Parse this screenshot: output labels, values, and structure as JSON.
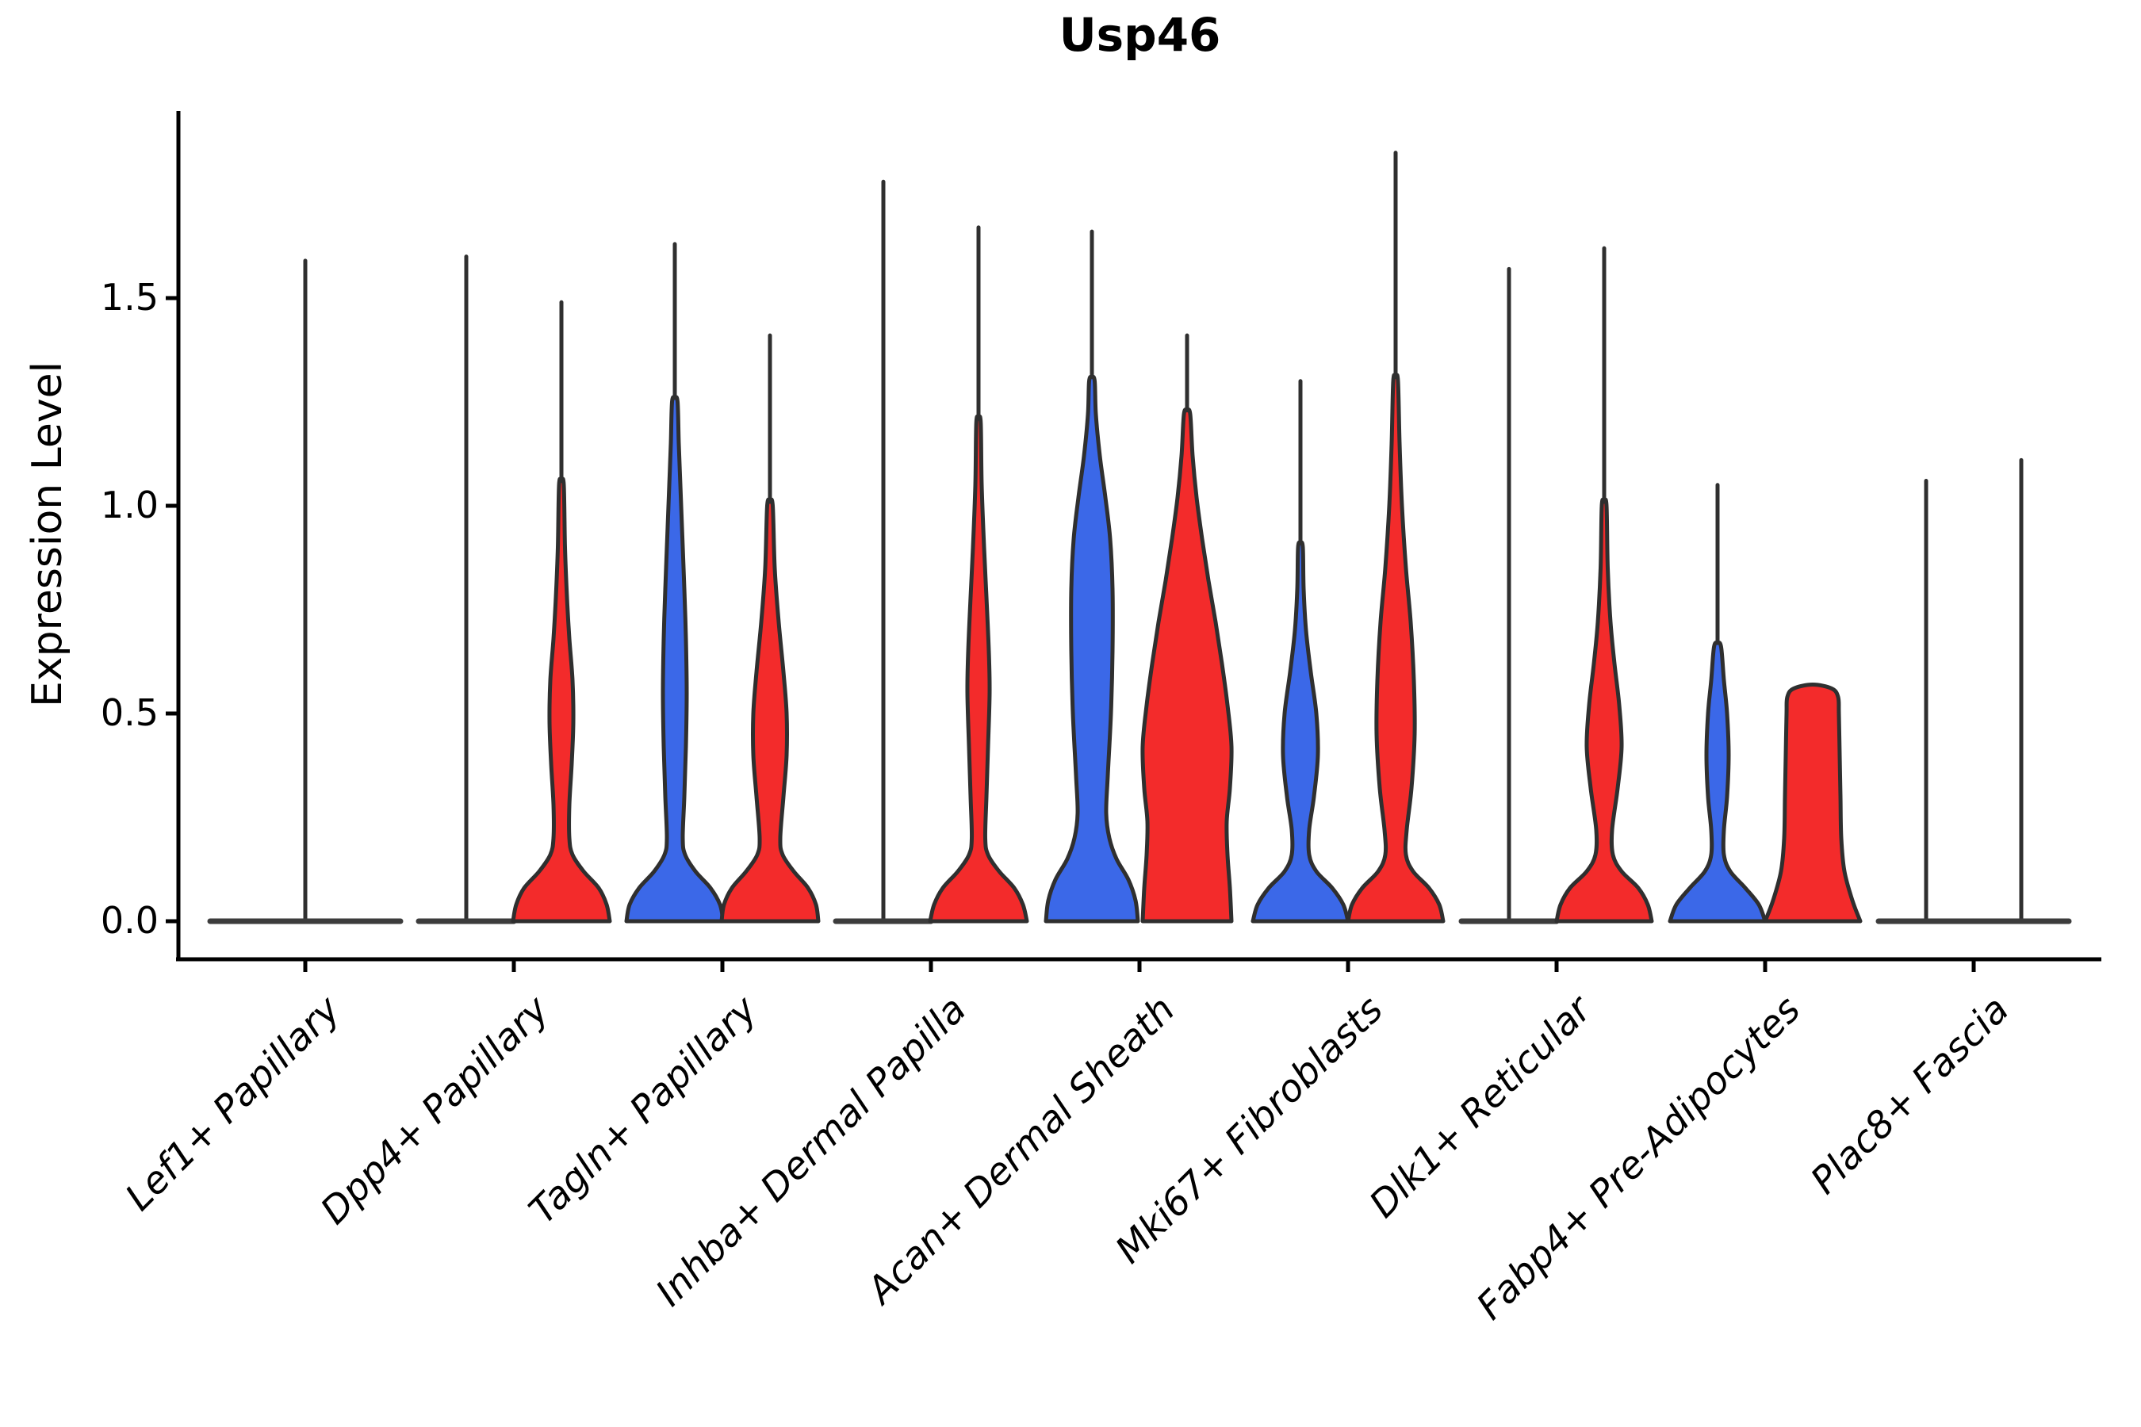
{
  "chart_data": {
    "type": "violin",
    "title": "Usp46",
    "ylabel": "Expression Level",
    "xlabel": "",
    "grid": false,
    "legend_position": "none",
    "ylim": [
      0,
      1.95
    ],
    "yticks": [
      {
        "label": "0.0",
        "value": 0.0
      },
      {
        "label": "0.5",
        "value": 0.5
      },
      {
        "label": "1.0",
        "value": 1.0
      },
      {
        "label": "1.5",
        "value": 1.5
      }
    ],
    "categories": [
      "Lef1+ Papillary",
      "Dpp4+ Papillary",
      "Tagln+ Papillary",
      "Inhba+ Dermal Papilla",
      "Acan+ Dermal Sheath",
      "Mki67+ Fibroblasts",
      "Dlk1+ Reticular",
      "Fabp4+ Pre-Adipocytes",
      "Plac8+ Fascia"
    ],
    "series": [
      {
        "key": "blue",
        "color": "#3B68E8"
      },
      {
        "key": "red",
        "color": "#F32B2B"
      }
    ],
    "style": {
      "edge_color": "#2F2F2F",
      "flat_line_color": "#3C3C3C",
      "background": "#FFFFFF"
    },
    "violins": [
      {
        "cat": 0,
        "category": "Lef1+ Papillary",
        "series": "single",
        "position": "center",
        "flat": true,
        "flat_halfwidth": 120,
        "spike_max": 1.59,
        "profile": null
      },
      {
        "cat": 1,
        "category": "Dpp4+ Papillary",
        "series": "blue",
        "position": "left",
        "flat": true,
        "flat_halfwidth": 60,
        "spike_max": 1.6,
        "profile": null
      },
      {
        "cat": 1,
        "category": "Dpp4+ Papillary",
        "series": "red",
        "position": "right",
        "flat": false,
        "flat_halfwidth": 0,
        "spike_max": 1.49,
        "profile": [
          [
            0,
            61
          ],
          [
            0.04,
            57
          ],
          [
            0.08,
            47
          ],
          [
            0.12,
            28
          ],
          [
            0.16,
            14
          ],
          [
            0.2,
            10
          ],
          [
            0.28,
            10
          ],
          [
            0.38,
            13
          ],
          [
            0.48,
            15
          ],
          [
            0.58,
            14
          ],
          [
            0.68,
            10
          ],
          [
            0.78,
            7
          ],
          [
            0.9,
            4.5
          ],
          [
            1.05,
            3
          ]
        ]
      },
      {
        "cat": 2,
        "category": "Tagln+ Papillary",
        "series": "blue",
        "position": "left",
        "flat": false,
        "flat_halfwidth": 0,
        "spike_max": 1.63,
        "profile": [
          [
            0,
            61
          ],
          [
            0.04,
            57
          ],
          [
            0.08,
            45
          ],
          [
            0.12,
            26
          ],
          [
            0.16,
            13
          ],
          [
            0.2,
            10
          ],
          [
            0.3,
            12
          ],
          [
            0.42,
            14
          ],
          [
            0.55,
            15
          ],
          [
            0.68,
            14
          ],
          [
            0.8,
            12
          ],
          [
            0.95,
            9
          ],
          [
            1.05,
            7
          ],
          [
            1.15,
            5
          ],
          [
            1.25,
            3.5
          ]
        ]
      },
      {
        "cat": 2,
        "category": "Tagln+ Papillary",
        "series": "red",
        "position": "right",
        "flat": false,
        "flat_halfwidth": 0,
        "spike_max": 1.41,
        "profile": [
          [
            0,
            61
          ],
          [
            0.04,
            58
          ],
          [
            0.08,
            48
          ],
          [
            0.12,
            30
          ],
          [
            0.16,
            16
          ],
          [
            0.2,
            13
          ],
          [
            0.3,
            17
          ],
          [
            0.4,
            21
          ],
          [
            0.5,
            21
          ],
          [
            0.6,
            17
          ],
          [
            0.72,
            11
          ],
          [
            0.85,
            6
          ],
          [
            1.0,
            3.5
          ]
        ]
      },
      {
        "cat": 3,
        "category": "Inhba+ Dermal Papilla",
        "series": "blue",
        "position": "left",
        "flat": true,
        "flat_halfwidth": 60,
        "spike_max": 1.78,
        "profile": null
      },
      {
        "cat": 3,
        "category": "Inhba+ Dermal Papilla",
        "series": "red",
        "position": "right",
        "flat": false,
        "flat_halfwidth": 0,
        "spike_max": 1.67,
        "profile": [
          [
            0,
            61
          ],
          [
            0.04,
            56
          ],
          [
            0.08,
            45
          ],
          [
            0.12,
            26
          ],
          [
            0.16,
            12
          ],
          [
            0.2,
            8.5
          ],
          [
            0.3,
            10
          ],
          [
            0.42,
            12
          ],
          [
            0.55,
            14
          ],
          [
            0.65,
            13
          ],
          [
            0.78,
            10
          ],
          [
            0.9,
            7
          ],
          [
            1.05,
            4
          ],
          [
            1.2,
            2.8
          ]
        ]
      },
      {
        "cat": 4,
        "category": "Acan+ Dermal Sheath",
        "series": "blue",
        "position": "left",
        "flat": false,
        "flat_halfwidth": 0,
        "spike_max": 1.66,
        "profile": [
          [
            0,
            58
          ],
          [
            0.05,
            55
          ],
          [
            0.1,
            46
          ],
          [
            0.15,
            31
          ],
          [
            0.2,
            22
          ],
          [
            0.26,
            18
          ],
          [
            0.35,
            20
          ],
          [
            0.5,
            24
          ],
          [
            0.65,
            26
          ],
          [
            0.8,
            26
          ],
          [
            0.92,
            23
          ],
          [
            1.02,
            17
          ],
          [
            1.12,
            10
          ],
          [
            1.22,
            5
          ],
          [
            1.3,
            3.5
          ]
        ]
      },
      {
        "cat": 4,
        "category": "Acan+ Dermal Sheath",
        "series": "red",
        "position": "right",
        "flat": false,
        "flat_halfwidth": 0,
        "spike_max": 1.41,
        "profile": [
          [
            0,
            56
          ],
          [
            0.08,
            54
          ],
          [
            0.16,
            51
          ],
          [
            0.24,
            50
          ],
          [
            0.32,
            54
          ],
          [
            0.42,
            56
          ],
          [
            0.52,
            51
          ],
          [
            0.62,
            44
          ],
          [
            0.72,
            36
          ],
          [
            0.82,
            27
          ],
          [
            0.92,
            19
          ],
          [
            1.02,
            12
          ],
          [
            1.12,
            7
          ],
          [
            1.22,
            4
          ]
        ]
      },
      {
        "cat": 5,
        "category": "Mki67+ Fibroblasts",
        "series": "blue",
        "position": "left",
        "flat": false,
        "flat_halfwidth": 0,
        "spike_max": 1.3,
        "profile": [
          [
            0,
            60
          ],
          [
            0.04,
            54
          ],
          [
            0.08,
            40
          ],
          [
            0.12,
            20
          ],
          [
            0.16,
            11
          ],
          [
            0.22,
            11
          ],
          [
            0.3,
            17
          ],
          [
            0.4,
            22
          ],
          [
            0.5,
            20
          ],
          [
            0.6,
            13
          ],
          [
            0.7,
            7
          ],
          [
            0.8,
            4
          ],
          [
            0.9,
            3
          ]
        ]
      },
      {
        "cat": 5,
        "category": "Mki67+ Fibroblasts",
        "series": "red",
        "position": "right",
        "flat": false,
        "flat_halfwidth": 0,
        "spike_max": 1.85,
        "profile": [
          [
            0,
            60
          ],
          [
            0.04,
            55
          ],
          [
            0.08,
            42
          ],
          [
            0.12,
            22
          ],
          [
            0.16,
            13
          ],
          [
            0.22,
            14
          ],
          [
            0.32,
            20
          ],
          [
            0.45,
            24
          ],
          [
            0.58,
            23
          ],
          [
            0.72,
            19
          ],
          [
            0.85,
            13
          ],
          [
            1.0,
            8
          ],
          [
            1.15,
            5
          ],
          [
            1.3,
            3
          ]
        ]
      },
      {
        "cat": 6,
        "category": "Dlk1+ Reticular",
        "series": "blue",
        "position": "left",
        "flat": true,
        "flat_halfwidth": 60,
        "spike_max": 1.57,
        "profile": null
      },
      {
        "cat": 6,
        "category": "Dlk1+ Reticular",
        "series": "red",
        "position": "right",
        "flat": false,
        "flat_halfwidth": 0,
        "spike_max": 1.62,
        "profile": [
          [
            0,
            60
          ],
          [
            0.04,
            55
          ],
          [
            0.08,
            43
          ],
          [
            0.12,
            22
          ],
          [
            0.16,
            11
          ],
          [
            0.22,
            10
          ],
          [
            0.32,
            17
          ],
          [
            0.42,
            22
          ],
          [
            0.52,
            19
          ],
          [
            0.62,
            13
          ],
          [
            0.72,
            8
          ],
          [
            0.85,
            4.5
          ],
          [
            1.0,
            3
          ]
        ]
      },
      {
        "cat": 7,
        "category": "Fabp4+ Pre-Adipocytes",
        "series": "blue",
        "position": "left",
        "flat": false,
        "flat_halfwidth": 0,
        "spike_max": 1.05,
        "profile": [
          [
            0,
            60
          ],
          [
            0.04,
            52
          ],
          [
            0.08,
            35
          ],
          [
            0.12,
            16
          ],
          [
            0.16,
            8
          ],
          [
            0.22,
            8
          ],
          [
            0.3,
            12
          ],
          [
            0.4,
            14
          ],
          [
            0.5,
            12
          ],
          [
            0.58,
            8
          ],
          [
            0.66,
            4.5
          ]
        ]
      },
      {
        "cat": 7,
        "category": "Fabp4+ Pre-Adipocytes",
        "series": "red",
        "position": "right",
        "flat": false,
        "flat_halfwidth": 0,
        "spike_max": null,
        "profile": [
          [
            0,
            60
          ],
          [
            0.05,
            50
          ],
          [
            0.12,
            40
          ],
          [
            0.2,
            36
          ],
          [
            0.3,
            35
          ],
          [
            0.4,
            34
          ],
          [
            0.5,
            33
          ],
          [
            0.54,
            32
          ],
          [
            0.56,
            24
          ]
        ]
      },
      {
        "cat": 8,
        "category": "Plac8+ Fascia",
        "series": "blue",
        "position": "left",
        "flat": true,
        "flat_halfwidth": 60,
        "spike_max": 1.06,
        "profile": null
      },
      {
        "cat": 8,
        "category": "Plac8+ Fascia",
        "series": "red",
        "position": "right",
        "flat": true,
        "flat_halfwidth": 60,
        "spike_max": 1.11,
        "profile": null
      }
    ]
  }
}
